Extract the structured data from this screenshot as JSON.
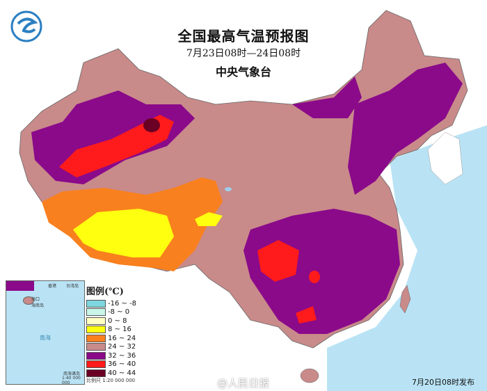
{
  "header": {
    "title": "全国最高气温预报图",
    "period": "7月23日08时—24日08时",
    "agency": "中央气象台"
  },
  "legend": {
    "title": "图例(℃)",
    "items": [
      {
        "label": "-16 ~ -8",
        "color": "#7fd6df"
      },
      {
        "label": "-8 ~ 0",
        "color": "#c9f6e9"
      },
      {
        "label": "0 ~ 8",
        "color": "#ffffc2"
      },
      {
        "label": "8 ~ 16",
        "color": "#ffff10"
      },
      {
        "label": "16 ~ 24",
        "color": "#f8801e"
      },
      {
        "label": "24 ~ 32",
        "color": "#c98a8a"
      },
      {
        "label": "32 ~ 36",
        "color": "#8a0a8a"
      },
      {
        "label": "36 ~ 40",
        "color": "#ff1b1b"
      },
      {
        "label": "40 ~ 44",
        "color": "#6a0024"
      }
    ],
    "scale": "比例尺  1:20 000 000"
  },
  "inset": {
    "labels": [
      "香港",
      "台湾岛",
      "海口",
      "海南岛",
      "南海",
      "南海诸岛"
    ],
    "scale": "1:40 000 000"
  },
  "footer": {
    "watermark": "@人民日报",
    "issued": "7月20日08时发布"
  },
  "colors": {
    "sea": "#b9e3f5",
    "land_outside": "#ffffff"
  }
}
